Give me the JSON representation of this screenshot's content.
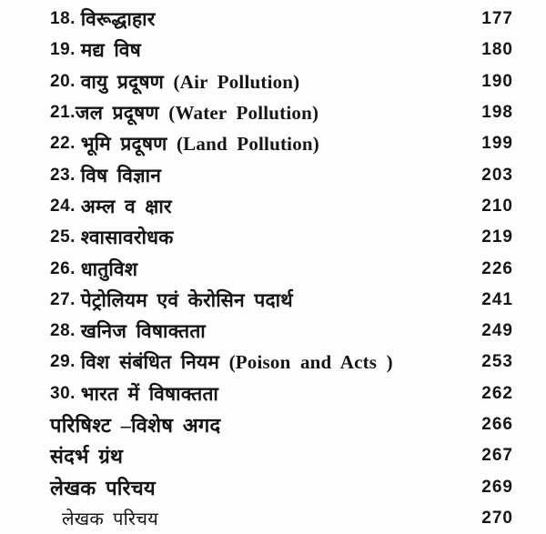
{
  "page": {
    "kind": "book-table-of-contents-scan",
    "background_color": "#fefefe",
    "text_color": "#151515"
  },
  "toc": {
    "entries": [
      {
        "number": "18. ",
        "title": "विरूद्धाहार",
        "page": "177",
        "bold": false,
        "indent": false
      },
      {
        "number": "19. ",
        "title": "मद्य विष",
        "page": "180",
        "bold": false,
        "indent": false
      },
      {
        "number": "20. ",
        "title": "वायु प्रदूषण (Air Pollution)",
        "page": "190",
        "bold": false,
        "indent": false
      },
      {
        "number": "21.",
        "title": "जल प्रदूषण (Water Pollution)",
        "page": "198",
        "bold": false,
        "indent": false
      },
      {
        "number": "22. ",
        "title": "भूमि प्रदूषण (Land Pollution)",
        "page": "199",
        "bold": false,
        "indent": false
      },
      {
        "number": "23. ",
        "title": "विष विज्ञान",
        "page": "203",
        "bold": false,
        "indent": false
      },
      {
        "number": "24. ",
        "title": "अम्ल व क्षार",
        "page": "210",
        "bold": false,
        "indent": false
      },
      {
        "number": "25. ",
        "title": "श्वासावरोधक",
        "page": "219",
        "bold": false,
        "indent": false
      },
      {
        "number": "26. ",
        "title": "धातुविश",
        "page": "226",
        "bold": false,
        "indent": false
      },
      {
        "number": "27. ",
        "title": "पेट्रोलियम एवं केरोसिन पदार्थ",
        "page": "241",
        "bold": false,
        "indent": false
      },
      {
        "number": "28. ",
        "title": "खनिज विषाक्तता",
        "page": "249",
        "bold": false,
        "indent": false
      },
      {
        "number": "29. ",
        "title": "विश संबंधित नियम (Poison and Acts )",
        "page": "253",
        "bold": false,
        "indent": false
      },
      {
        "number": "30. ",
        "title": "भारत में विषाक्तता",
        "page": "262",
        "bold": false,
        "indent": false
      },
      {
        "number": "",
        "title": "परिषिश्ट –विशेष अगद",
        "page": "266",
        "bold": true,
        "indent": false
      },
      {
        "number": "",
        "title": "संदर्भ ग्रंथ",
        "page": "267",
        "bold": true,
        "indent": false
      },
      {
        "number": "",
        "title": "लेखक परिचय",
        "page": "269",
        "bold": true,
        "indent": false
      },
      {
        "number": "",
        "title": "लेखक परिचय",
        "page": "270",
        "bold": false,
        "indent": true
      }
    ]
  }
}
